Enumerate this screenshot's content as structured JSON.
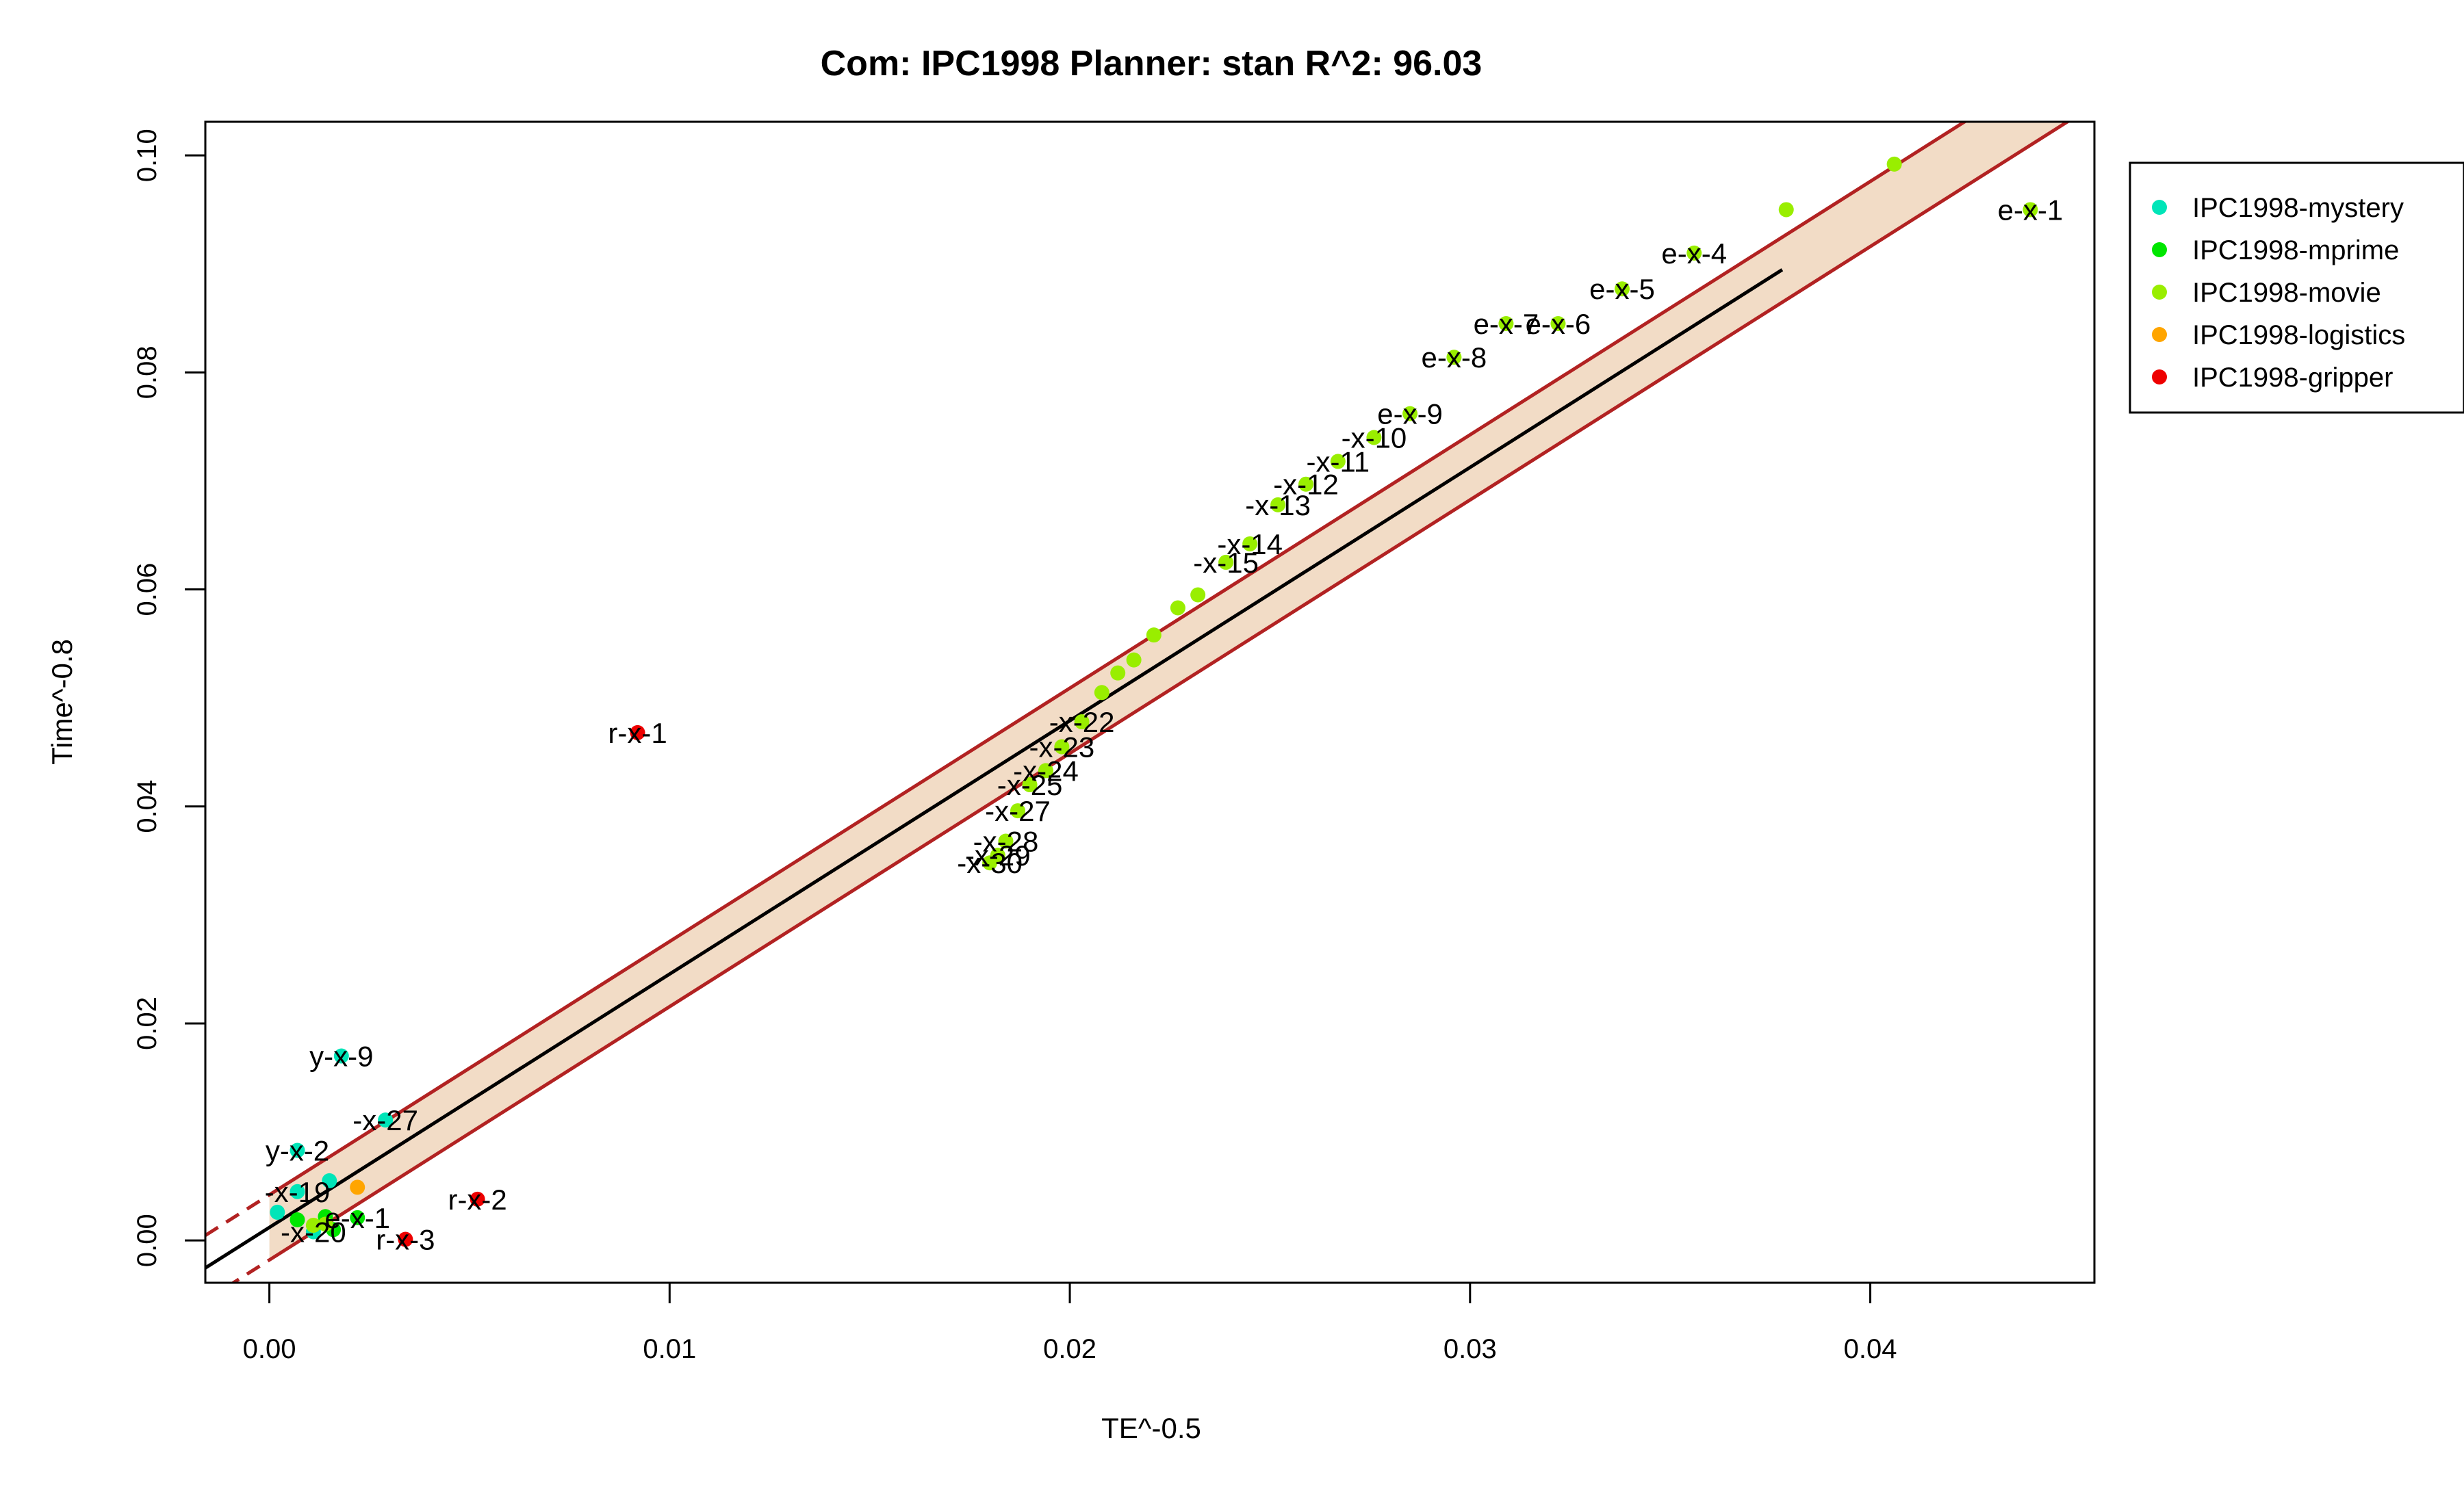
{
  "chart_data": {
    "type": "scatter",
    "title": "Com: IPC1998 Planner: stan R^2: 96.03",
    "xlabel": "TE^-0.5",
    "ylabel": "Time^-0.8",
    "xlim": [
      -0.0016,
      0.0456
    ],
    "ylim": [
      -0.0039,
      0.1031
    ],
    "x_ticks": [
      "0.00",
      "0.01",
      "0.02",
      "0.03",
      "0.04"
    ],
    "y_ticks": [
      "0.00",
      "0.02",
      "0.04",
      "0.06",
      "0.08",
      "0.10"
    ],
    "grid": false,
    "legend_position": "top-right-outside",
    "regression": {
      "fit": {
        "slope": 2.335,
        "intercept": 0.0012
      },
      "band_lower": {
        "slope": 2.335,
        "intercept": -0.0018
      },
      "band_upper": {
        "slope": 2.335,
        "intercept": 0.0042
      },
      "fit_x_range": [
        -0.0016,
        0.0378
      ],
      "band_x_range": [
        0.0,
        0.0456
      ],
      "band_fill": "#f2dcc6",
      "band_line_color": "#b22222",
      "fit_line_color": "#000000"
    },
    "series": [
      {
        "name": "IPC1998-mystery",
        "color": "#00e5b8",
        "points": [
          {
            "x": 0.0018,
            "y": 0.017,
            "label": "y-x-9"
          },
          {
            "x": 0.0029,
            "y": 0.0111,
            "label": "-x-27"
          },
          {
            "x": 0.0007,
            "y": 0.0083,
            "label": "y-x-2"
          },
          {
            "x": 0.0007,
            "y": 0.0045,
            "label": "-x-19"
          },
          {
            "x": 0.0015,
            "y": 0.0055,
            "label": ""
          },
          {
            "x": 0.0002,
            "y": 0.0026,
            "label": ""
          },
          {
            "x": 0.0011,
            "y": 0.0008,
            "label": "-x-20"
          }
        ]
      },
      {
        "name": "IPC1998-mprime",
        "color": "#00e600",
        "points": [
          {
            "x": 0.0022,
            "y": 0.0021,
            "label": "e-x-1"
          },
          {
            "x": 0.0014,
            "y": 0.0022,
            "label": ""
          },
          {
            "x": 0.0007,
            "y": 0.0019,
            "label": ""
          },
          {
            "x": 0.0016,
            "y": 0.001,
            "label": ""
          }
        ]
      },
      {
        "name": "IPC1998-movie",
        "color": "#99ee00",
        "points": [
          {
            "x": 0.044,
            "y": 0.095,
            "label": "e-x-1"
          },
          {
            "x": 0.0406,
            "y": 0.0992,
            "label": ""
          },
          {
            "x": 0.0379,
            "y": 0.095,
            "label": ""
          },
          {
            "x": 0.0356,
            "y": 0.091,
            "label": "e-x-4"
          },
          {
            "x": 0.0338,
            "y": 0.0877,
            "label": "e-x-5"
          },
          {
            "x": 0.0322,
            "y": 0.0845,
            "label": "e-x-6"
          },
          {
            "x": 0.0309,
            "y": 0.0845,
            "label": "e-x-7"
          },
          {
            "x": 0.0296,
            "y": 0.0814,
            "label": "e-x-8"
          },
          {
            "x": 0.0285,
            "y": 0.0762,
            "label": "e-x-9"
          },
          {
            "x": 0.0276,
            "y": 0.074,
            "label": "-x-10"
          },
          {
            "x": 0.0267,
            "y": 0.0718,
            "label": "-x-11"
          },
          {
            "x": 0.0259,
            "y": 0.0697,
            "label": "-x-12"
          },
          {
            "x": 0.0252,
            "y": 0.0678,
            "label": "-x-13"
          },
          {
            "x": 0.0245,
            "y": 0.0642,
            "label": "-x-14"
          },
          {
            "x": 0.0239,
            "y": 0.0625,
            "label": "-x-15"
          },
          {
            "x": 0.0232,
            "y": 0.0595,
            "label": ""
          },
          {
            "x": 0.0227,
            "y": 0.0583,
            "label": ""
          },
          {
            "x": 0.0221,
            "y": 0.0558,
            "label": ""
          },
          {
            "x": 0.0216,
            "y": 0.0535,
            "label": ""
          },
          {
            "x": 0.0212,
            "y": 0.0523,
            "label": ""
          },
          {
            "x": 0.0208,
            "y": 0.0505,
            "label": ""
          },
          {
            "x": 0.0203,
            "y": 0.0478,
            "label": "-x-22"
          },
          {
            "x": 0.0198,
            "y": 0.0455,
            "label": "-x-23"
          },
          {
            "x": 0.0194,
            "y": 0.0433,
            "label": "-x-24"
          },
          {
            "x": 0.019,
            "y": 0.042,
            "label": "-x-25"
          },
          {
            "x": 0.0187,
            "y": 0.0396,
            "label": "-x-27"
          },
          {
            "x": 0.0184,
            "y": 0.0368,
            "label": "-x-28"
          },
          {
            "x": 0.0182,
            "y": 0.0355,
            "label": "-x-29"
          },
          {
            "x": 0.018,
            "y": 0.0348,
            "label": "-x-30"
          },
          {
            "x": 0.0014,
            "y": 0.0015,
            "label": ""
          },
          {
            "x": 0.0011,
            "y": 0.0014,
            "label": ""
          }
        ]
      },
      {
        "name": "IPC1998-logistics",
        "color": "#ffa500",
        "points": [
          {
            "x": 0.0022,
            "y": 0.0049,
            "label": ""
          }
        ]
      },
      {
        "name": "IPC1998-gripper",
        "color": "#ee0000",
        "points": [
          {
            "x": 0.0092,
            "y": 0.0468,
            "label": "r-x-1"
          },
          {
            "x": 0.0052,
            "y": 0.0038,
            "label": "r-x-2"
          },
          {
            "x": 0.0034,
            "y": 0.0001,
            "label": "r-x-3"
          }
        ]
      }
    ]
  }
}
